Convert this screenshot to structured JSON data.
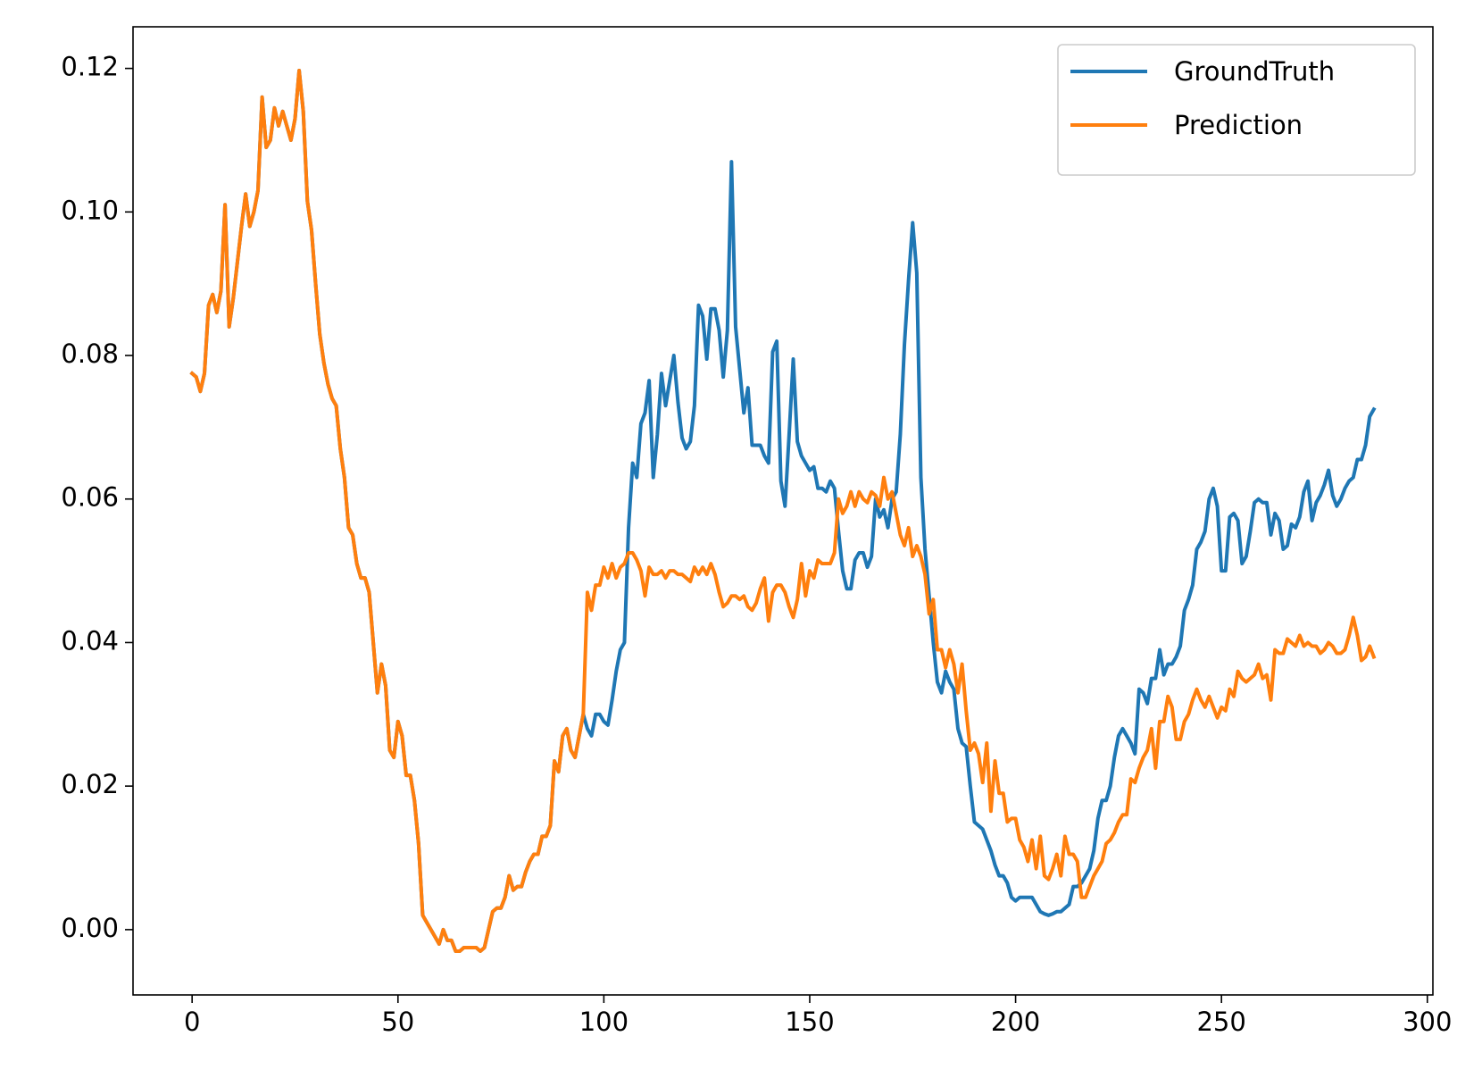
{
  "chart_data": {
    "type": "line",
    "xlim": [
      -14.35,
      301.35
    ],
    "xticks": [
      0,
      50,
      100,
      150,
      200,
      250,
      300
    ],
    "ylim": [
      -0.0091,
      0.1258
    ],
    "yticks": [
      {
        "value": 0,
        "label": "0.00"
      },
      {
        "value": 0.02,
        "label": "0.02"
      },
      {
        "value": 0.04,
        "label": "0.04"
      },
      {
        "value": 0.06,
        "label": "0.06"
      },
      {
        "value": 0.08,
        "label": "0.08"
      },
      {
        "value": 0.1,
        "label": "0.10"
      },
      {
        "value": 0.12,
        "label": "0.12"
      }
    ],
    "grid": false,
    "legend": "upper right",
    "series": [
      {
        "name": "GroundTruth",
        "color": "#1f77b4",
        "values": [
          0.0775,
          0.077,
          0.075,
          0.0775,
          0.087,
          0.0885,
          0.086,
          0.089,
          0.101,
          0.084,
          0.088,
          0.093,
          0.098,
          0.1025,
          0.098,
          0.1,
          0.103,
          0.116,
          0.109,
          0.11,
          0.1145,
          0.112,
          0.114,
          0.112,
          0.11,
          0.113,
          0.1197,
          0.114,
          0.1015,
          0.0975,
          0.09,
          0.083,
          0.079,
          0.076,
          0.074,
          0.073,
          0.067,
          0.063,
          0.056,
          0.055,
          0.051,
          0.049,
          0.049,
          0.047,
          0.04,
          0.033,
          0.037,
          0.034,
          0.025,
          0.024,
          0.029,
          0.027,
          0.0215,
          0.0215,
          0.018,
          0.012,
          0.002,
          0.001,
          0,
          -0.001,
          -0.002,
          0,
          -0.0015,
          -0.0015,
          -0.003,
          -0.003,
          -0.0025,
          -0.0025,
          -0.0025,
          -0.0025,
          -0.003,
          -0.0025,
          0,
          0.0025,
          0.003,
          0.003,
          0.0045,
          0.0075,
          0.0055,
          0.006,
          0.006,
          0.008,
          0.0095,
          0.0105,
          0.0105,
          0.013,
          0.013,
          0.0145,
          0.0235,
          0.022,
          0.027,
          0.028,
          0.025,
          0.024,
          0.027,
          0.03,
          0.028,
          0.027,
          0.03,
          0.03,
          0.029,
          0.0285,
          0.032,
          0.036,
          0.039,
          0.04,
          0.056,
          0.065,
          0.063,
          0.0705,
          0.072,
          0.0765,
          0.063,
          0.069,
          0.0775,
          0.073,
          0.0765,
          0.08,
          0.0735,
          0.0685,
          0.067,
          0.068,
          0.073,
          0.087,
          0.0855,
          0.0795,
          0.0865,
          0.0865,
          0.0835,
          0.077,
          0.0835,
          0.107,
          0.084,
          0.078,
          0.072,
          0.0755,
          0.0675,
          0.0675,
          0.0675,
          0.066,
          0.065,
          0.0805,
          0.082,
          0.0625,
          0.059,
          0.069,
          0.0795,
          0.068,
          0.066,
          0.065,
          0.064,
          0.0645,
          0.0615,
          0.0615,
          0.061,
          0.0625,
          0.0615,
          0.0555,
          0.05,
          0.0475,
          0.0475,
          0.0515,
          0.0525,
          0.0525,
          0.0505,
          0.052,
          0.06,
          0.0575,
          0.0585,
          0.056,
          0.06,
          0.061,
          0.069,
          0.0815,
          0.0905,
          0.0985,
          0.0915,
          0.063,
          0.053,
          0.0465,
          0.04,
          0.0345,
          0.033,
          0.036,
          0.0345,
          0.0335,
          0.028,
          0.026,
          0.0255,
          0.02,
          0.015,
          0.0145,
          0.014,
          0.0125,
          0.011,
          0.009,
          0.0075,
          0.0075,
          0.0065,
          0.0045,
          0.004,
          0.0045,
          0.0045,
          0.0045,
          0.0045,
          0.0035,
          0.0025,
          0.0022,
          0.002,
          0.0022,
          0.0025,
          0.0025,
          0.003,
          0.0035,
          0.006,
          0.006,
          0.0065,
          0.0075,
          0.0085,
          0.011,
          0.0155,
          0.018,
          0.018,
          0.02,
          0.024,
          0.027,
          0.028,
          0.027,
          0.026,
          0.0245,
          0.0335,
          0.033,
          0.0315,
          0.035,
          0.035,
          0.039,
          0.0355,
          0.037,
          0.037,
          0.038,
          0.0395,
          0.0445,
          0.046,
          0.048,
          0.053,
          0.054,
          0.0555,
          0.06,
          0.0615,
          0.059,
          0.05,
          0.05,
          0.0575,
          0.058,
          0.057,
          0.051,
          0.052,
          0.0555,
          0.0595,
          0.06,
          0.0595,
          0.0595,
          0.055,
          0.058,
          0.057,
          0.053,
          0.0535,
          0.0565,
          0.056,
          0.0575,
          0.061,
          0.0625,
          0.057,
          0.0595,
          0.0605,
          0.062,
          0.064,
          0.0605,
          0.059,
          0.06,
          0.0615,
          0.0625,
          0.063,
          0.0655,
          0.0655,
          0.0675,
          0.0715,
          0.0725
        ]
      },
      {
        "name": "Prediction",
        "color": "#ff7f0e",
        "values": [
          0.0775,
          0.077,
          0.075,
          0.0775,
          0.087,
          0.0885,
          0.086,
          0.089,
          0.101,
          0.084,
          0.088,
          0.093,
          0.098,
          0.1025,
          0.098,
          0.1,
          0.103,
          0.116,
          0.109,
          0.11,
          0.1145,
          0.112,
          0.114,
          0.112,
          0.11,
          0.113,
          0.1197,
          0.114,
          0.1015,
          0.0975,
          0.09,
          0.083,
          0.079,
          0.076,
          0.074,
          0.073,
          0.067,
          0.063,
          0.056,
          0.055,
          0.051,
          0.049,
          0.049,
          0.047,
          0.04,
          0.033,
          0.037,
          0.034,
          0.025,
          0.024,
          0.029,
          0.027,
          0.0215,
          0.0215,
          0.018,
          0.012,
          0.002,
          0.001,
          0,
          -0.001,
          -0.002,
          0,
          -0.0015,
          -0.0015,
          -0.003,
          -0.003,
          -0.0025,
          -0.0025,
          -0.0025,
          -0.0025,
          -0.003,
          -0.0025,
          0,
          0.0025,
          0.003,
          0.003,
          0.0045,
          0.0075,
          0.0055,
          0.006,
          0.006,
          0.008,
          0.0095,
          0.0105,
          0.0105,
          0.013,
          0.013,
          0.0145,
          0.0235,
          0.022,
          0.027,
          0.028,
          0.025,
          0.024,
          0.027,
          0.03,
          0.047,
          0.0445,
          0.048,
          0.048,
          0.0505,
          0.049,
          0.051,
          0.049,
          0.0505,
          0.051,
          0.0525,
          0.0525,
          0.0515,
          0.05,
          0.0465,
          0.0505,
          0.0495,
          0.0495,
          0.05,
          0.049,
          0.05,
          0.05,
          0.0495,
          0.0495,
          0.049,
          0.0485,
          0.0505,
          0.0495,
          0.0505,
          0.0495,
          0.051,
          0.0495,
          0.047,
          0.045,
          0.0455,
          0.0465,
          0.0465,
          0.046,
          0.0465,
          0.045,
          0.0445,
          0.0455,
          0.0475,
          0.049,
          0.043,
          0.047,
          0.048,
          0.048,
          0.047,
          0.045,
          0.0435,
          0.046,
          0.051,
          0.0465,
          0.05,
          0.049,
          0.0515,
          0.051,
          0.051,
          0.051,
          0.0525,
          0.06,
          0.058,
          0.059,
          0.061,
          0.059,
          0.061,
          0.06,
          0.0595,
          0.061,
          0.0605,
          0.059,
          0.063,
          0.06,
          0.061,
          0.058,
          0.055,
          0.0535,
          0.056,
          0.052,
          0.0535,
          0.052,
          0.0495,
          0.044,
          0.046,
          0.039,
          0.039,
          0.0365,
          0.039,
          0.037,
          0.033,
          0.037,
          0.0305,
          0.025,
          0.026,
          0.0245,
          0.0205,
          0.026,
          0.0165,
          0.0235,
          0.019,
          0.019,
          0.015,
          0.0155,
          0.0155,
          0.0125,
          0.0115,
          0.0095,
          0.0125,
          0.0085,
          0.013,
          0.0075,
          0.007,
          0.0085,
          0.0105,
          0.0075,
          0.013,
          0.0105,
          0.0105,
          0.0095,
          0.0045,
          0.0045,
          0.006,
          0.0075,
          0.0085,
          0.0095,
          0.012,
          0.0125,
          0.0135,
          0.015,
          0.016,
          0.016,
          0.021,
          0.0205,
          0.0225,
          0.024,
          0.025,
          0.028,
          0.0225,
          0.029,
          0.029,
          0.0325,
          0.031,
          0.0265,
          0.0265,
          0.029,
          0.03,
          0.032,
          0.0335,
          0.032,
          0.031,
          0.0325,
          0.031,
          0.0295,
          0.031,
          0.0305,
          0.0335,
          0.0325,
          0.036,
          0.035,
          0.0345,
          0.035,
          0.0355,
          0.037,
          0.035,
          0.0355,
          0.032,
          0.039,
          0.0385,
          0.0385,
          0.0405,
          0.04,
          0.0395,
          0.041,
          0.0395,
          0.04,
          0.0395,
          0.0395,
          0.0385,
          0.039,
          0.04,
          0.0395,
          0.0385,
          0.0385,
          0.039,
          0.041,
          0.0435,
          0.041,
          0.0375,
          0.038,
          0.0395,
          0.038
        ]
      }
    ]
  }
}
